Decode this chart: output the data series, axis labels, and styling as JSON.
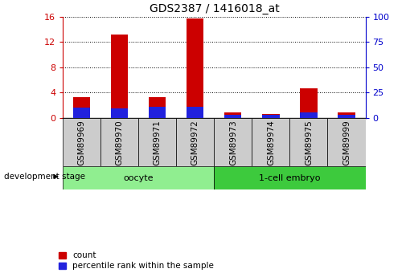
{
  "title": "GDS2387 / 1416018_at",
  "samples": [
    "GSM89969",
    "GSM89970",
    "GSM89971",
    "GSM89972",
    "GSM89973",
    "GSM89974",
    "GSM89975",
    "GSM89999"
  ],
  "count_values": [
    3.3,
    13.2,
    3.2,
    15.7,
    0.9,
    0.6,
    4.7,
    0.8
  ],
  "percentile_right_values": [
    10.0,
    9.0,
    11.0,
    11.0,
    2.5,
    3.0,
    5.5,
    2.5
  ],
  "groups": [
    {
      "label": "oocyte",
      "start": 0,
      "end": 4,
      "color": "#90ee90"
    },
    {
      "label": "1-cell embryo",
      "start": 4,
      "end": 8,
      "color": "#3dca3d"
    }
  ],
  "ylim_left": [
    0,
    16
  ],
  "ylim_right": [
    0,
    100
  ],
  "yticks_left": [
    0,
    4,
    8,
    12,
    16
  ],
  "yticks_right": [
    0,
    25,
    50,
    75,
    100
  ],
  "bar_color_red": "#cc0000",
  "bar_color_blue": "#2222dd",
  "bar_width": 0.45,
  "bg_color": "#ffffff",
  "tick_label_area_color": "#cccccc",
  "left_axis_color": "#cc0000",
  "right_axis_color": "#0000cc",
  "development_stage_label": "development stage",
  "legend_count": "count",
  "legend_percentile": "percentile rank within the sample",
  "title_fontsize": 10,
  "axis_tick_fontsize": 8,
  "sample_fontsize": 7.5,
  "group_fontsize": 8,
  "legend_fontsize": 7.5
}
